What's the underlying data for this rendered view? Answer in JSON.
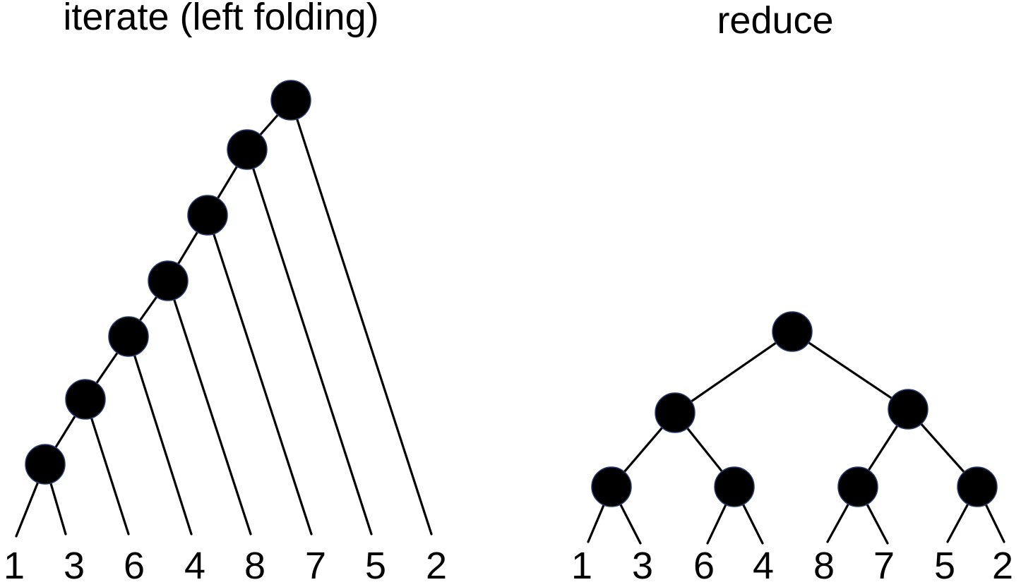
{
  "iterate": {
    "title": "iterate (left folding)",
    "leaves": [
      "1",
      "3",
      "6",
      "4",
      "8",
      "7",
      "5",
      "2"
    ]
  },
  "reduce": {
    "title": "reduce",
    "leaves": [
      "1",
      "3",
      "6",
      "4",
      "8",
      "7",
      "5",
      "2"
    ]
  },
  "colors": {
    "node_fill": "#000000",
    "node_outline": "#2b3a6b",
    "edge": "#000000",
    "text": "#000000",
    "background": "#ffffff"
  }
}
